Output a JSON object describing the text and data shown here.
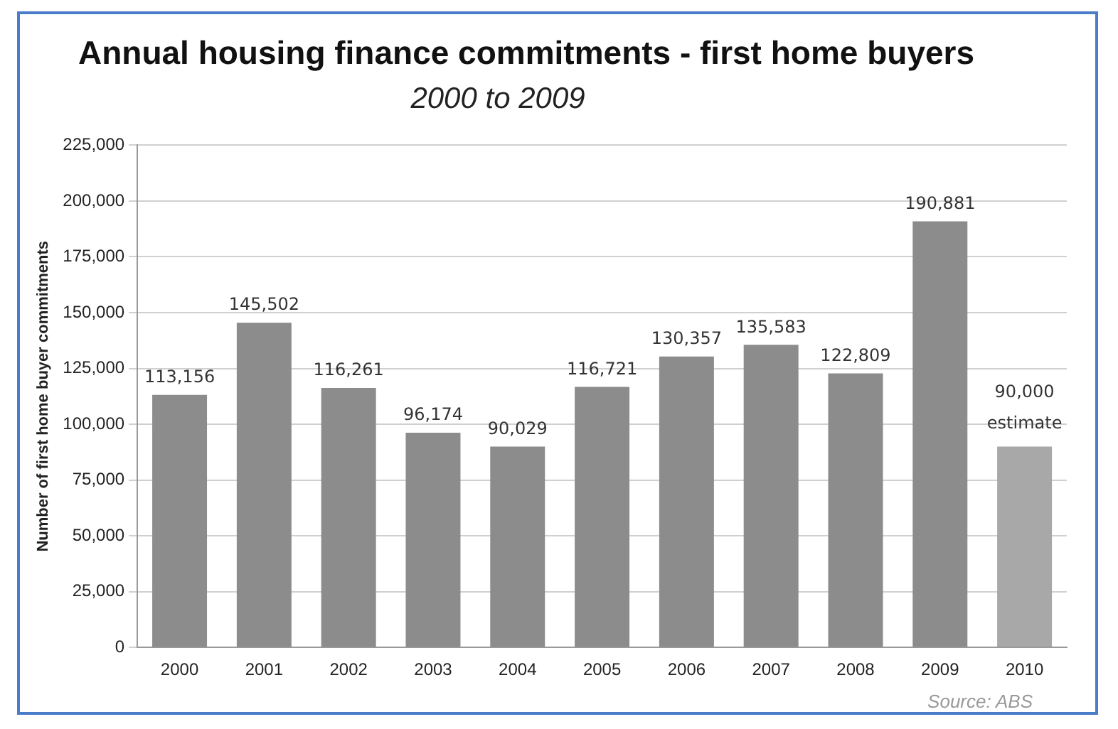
{
  "chart_data": {
    "type": "bar",
    "title": "Annual housing finance commitments - first home buyers",
    "subtitle": "2000 to 2009",
    "ylabel": "Number of first home buyer commitments",
    "categories": [
      "2000",
      "2001",
      "2002",
      "2003",
      "2004",
      "2005",
      "2006",
      "2007",
      "2008",
      "2009",
      "2010"
    ],
    "values": [
      113156,
      145502,
      116261,
      96174,
      90029,
      116721,
      130357,
      135583,
      122809,
      190881,
      90000
    ],
    "colors": [
      "#8c8c8c",
      "#8c8c8c",
      "#8c8c8c",
      "#8c8c8c",
      "#8c8c8c",
      "#8c8c8c",
      "#8c8c8c",
      "#8c8c8c",
      "#8c8c8c",
      "#8c8c8c",
      "#a8a8a8"
    ],
    "ylim": [
      0,
      225000
    ],
    "yticks": [
      0,
      {
        "value": 25000,
        "label": "25,000"
      },
      {
        "value": 50000,
        "label": "50,000"
      },
      {
        "value": 75000,
        "label": "75,000"
      },
      {
        "value": 100000,
        "label": "100,000"
      },
      {
        "value": 125000,
        "label": "125,000"
      },
      {
        "value": 150000,
        "label": "150,000"
      },
      {
        "value": 175000,
        "label": "175,000"
      },
      {
        "value": 200000,
        "label": "200,000"
      },
      {
        "value": 225000,
        "label": "225,000"
      }
    ],
    "value_labels": [
      "113,156",
      "145,502",
      "116,261",
      "96,174",
      "90,029",
      "116,721",
      "130,357",
      "135,583",
      "122,809",
      "190,881",
      "90,000"
    ],
    "annotations": [
      {
        "text": "estimate",
        "x": "2010",
        "y": 90000
      },
      "Source: ABS"
    ],
    "grid": "y",
    "legend": false
  }
}
